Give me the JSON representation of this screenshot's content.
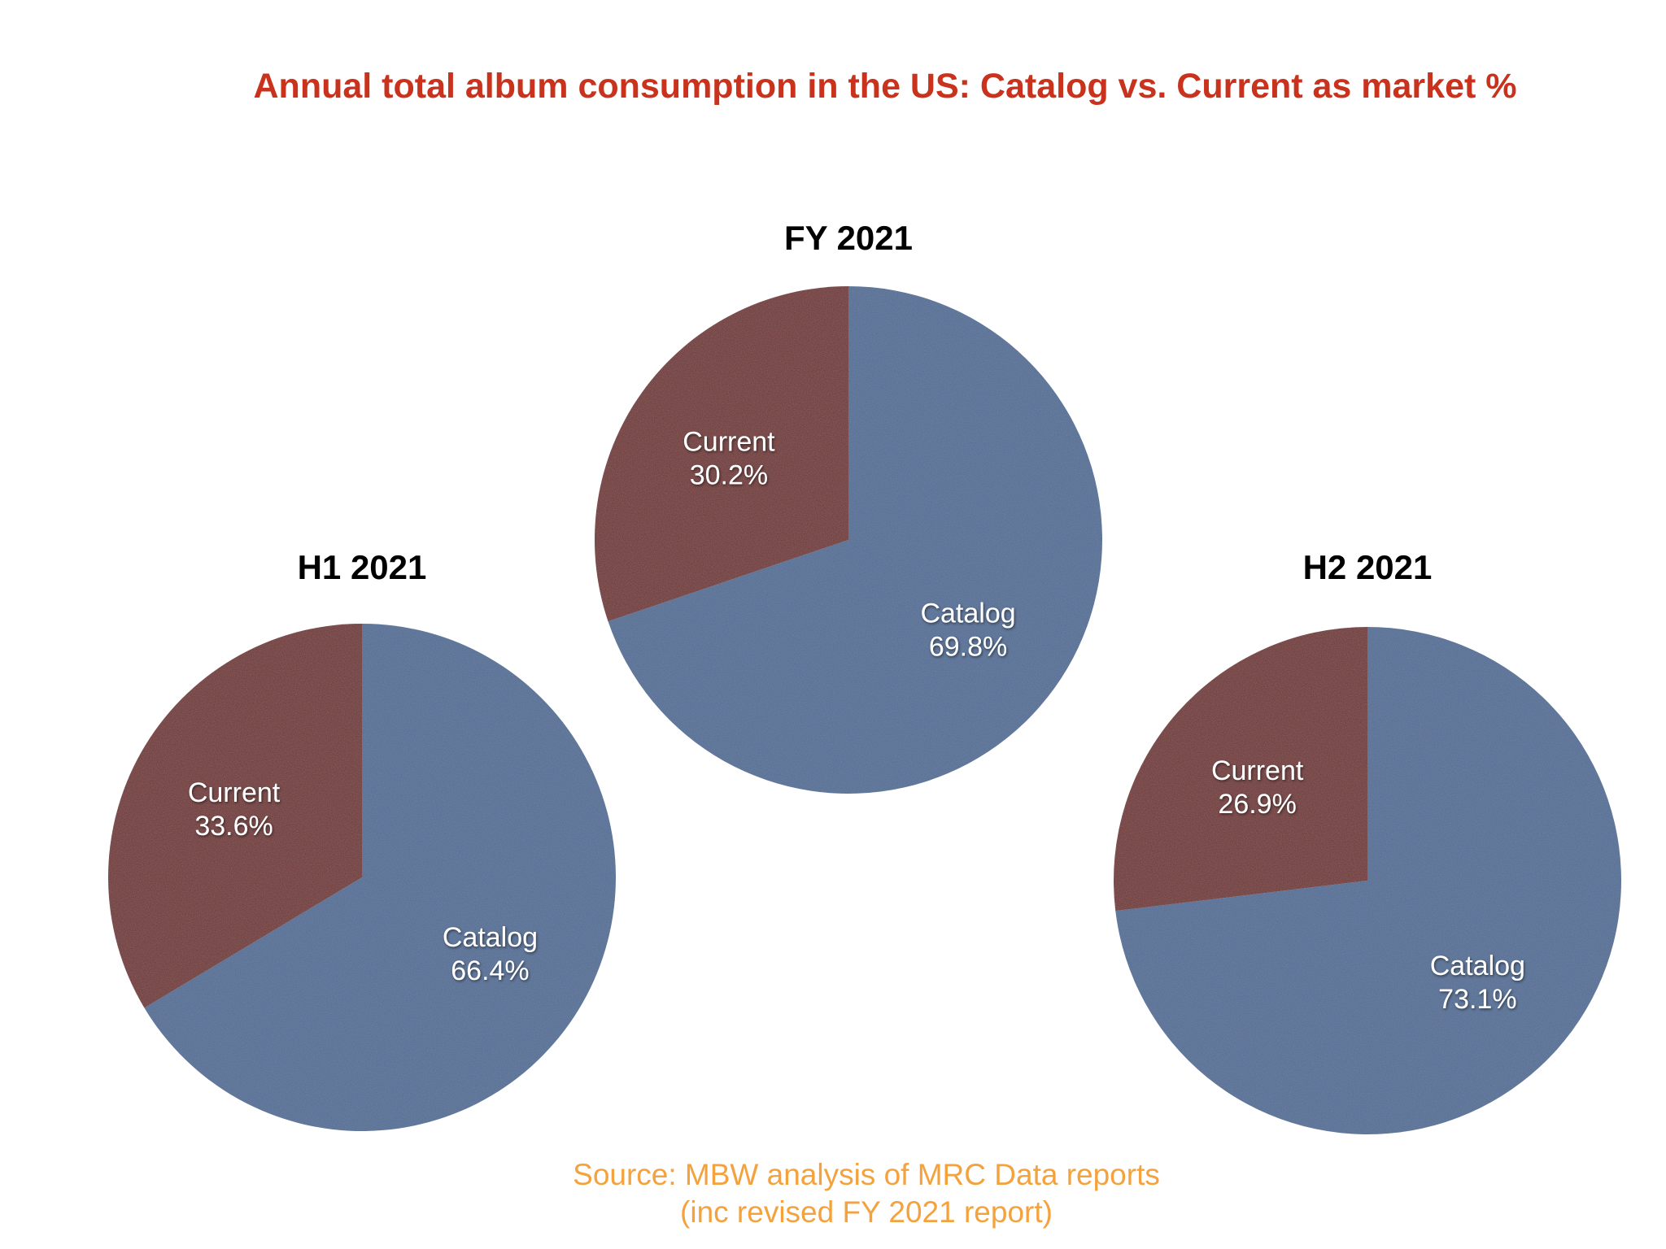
{
  "title": "Annual total album consumption in the US: Catalog vs. Current as market %",
  "colors": {
    "title": "#c9321c",
    "catalog": "#4d6a93",
    "current": "#6e2f2f",
    "label": "#ffffff",
    "source": "#f3a23d"
  },
  "chart_data": [
    {
      "type": "pie",
      "title": "H1 2021",
      "slices": [
        {
          "label": "Catalog",
          "value": 66.4,
          "display": "66.4%"
        },
        {
          "label": "Current",
          "value": 33.6,
          "display": "33.6%"
        }
      ]
    },
    {
      "type": "pie",
      "title": "FY 2021",
      "slices": [
        {
          "label": "Catalog",
          "value": 69.8,
          "display": "69.8%"
        },
        {
          "label": "Current",
          "value": 30.2,
          "display": "30.2%"
        }
      ]
    },
    {
      "type": "pie",
      "title": "H2 2021",
      "slices": [
        {
          "label": "Catalog",
          "value": 73.1,
          "display": "73.1%"
        },
        {
          "label": "Current",
          "value": 26.9,
          "display": "26.9%"
        }
      ]
    }
  ],
  "source": {
    "line1": "Source: MBW analysis of MRC Data reports",
    "line2": "(inc revised FY 2021 report)"
  }
}
